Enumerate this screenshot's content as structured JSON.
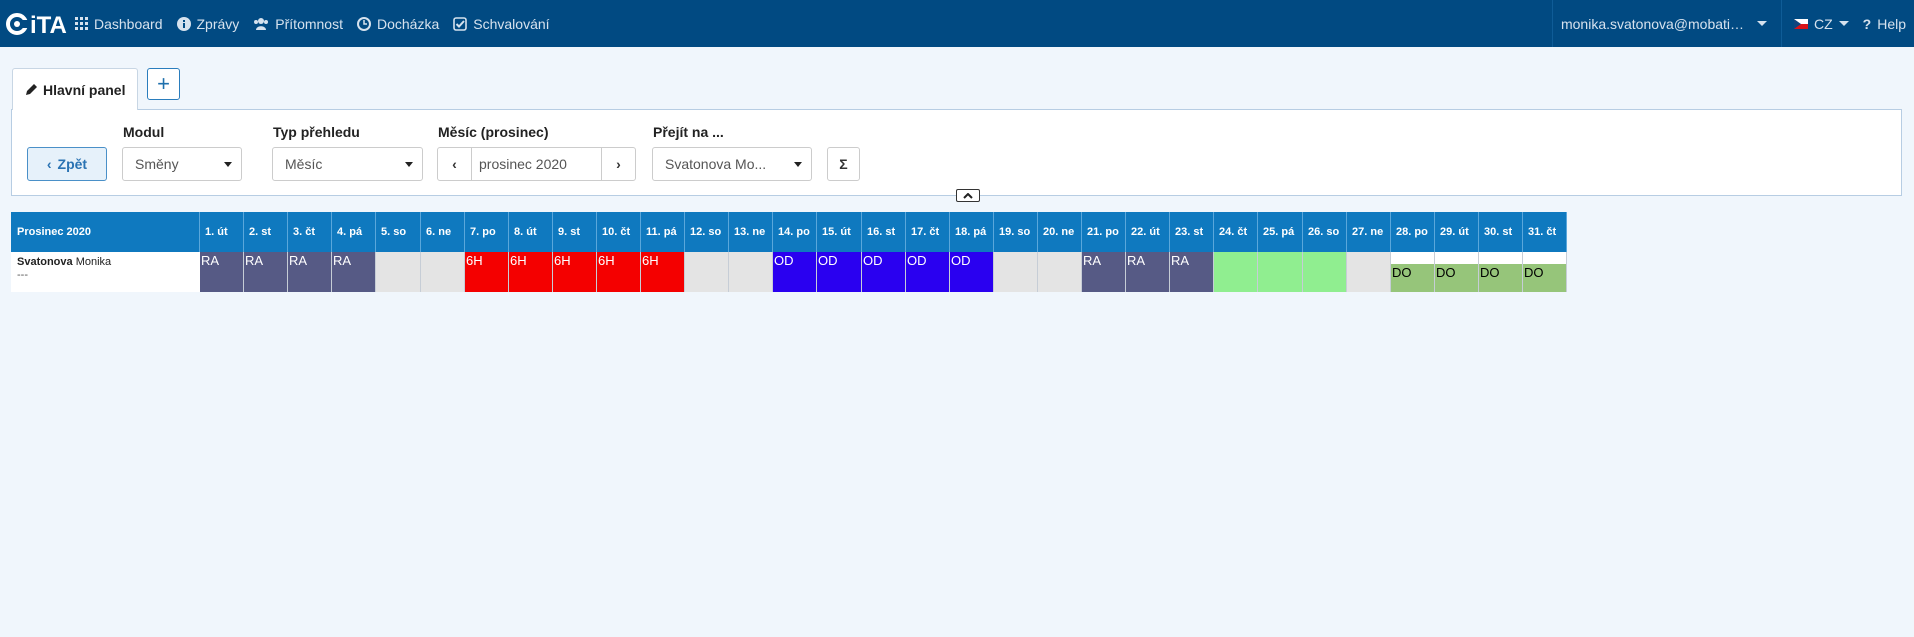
{
  "app": {
    "logo_text": "iTA",
    "nav": [
      {
        "label": "Dashboard",
        "icon": "grid-icon"
      },
      {
        "label": "Zprávy",
        "icon": "info-icon"
      },
      {
        "label": "Přítomnost",
        "icon": "users-icon"
      },
      {
        "label": "Docházka",
        "icon": "clock-icon"
      },
      {
        "label": "Schvalování",
        "icon": "check-square-icon"
      }
    ],
    "user": "monika.svatonova@mobatime...",
    "language": "CZ",
    "help": "Help"
  },
  "tabs": {
    "active_label": "Hlavní panel",
    "add_label": "+"
  },
  "filters": {
    "back_label": "Zpět",
    "module_label": "Modul",
    "module_value": "Směny",
    "view_label": "Typ přehledu",
    "view_value": "Měsíc",
    "month_label": "Měsíc (prosinec)",
    "month_value": "prosinec 2020",
    "goto_label": "Přejít na ...",
    "goto_value": "Svatonova Mo...",
    "sum_label": "Σ"
  },
  "grid": {
    "title": "Prosinec 2020",
    "days": [
      "1. út",
      "2. st",
      "3. čt",
      "4. pá",
      "5. so",
      "6. ne",
      "7. po",
      "8. út",
      "9. st",
      "10. čt",
      "11. pá",
      "12. so",
      "13. ne",
      "14. po",
      "15. út",
      "16. st",
      "17. čt",
      "18. pá",
      "19. so",
      "20. ne",
      "21. po",
      "22. út",
      "23. st",
      "24. čt",
      "25. pá",
      "26. so",
      "27. ne",
      "28. po",
      "29. út",
      "30. st",
      "31. čt"
    ],
    "employee": {
      "surname": "Svatonova",
      "firstname": "Monika",
      "sub": "---"
    },
    "cells": [
      {
        "code": "RA",
        "color": "#565a85",
        "text_color": "#ffffff"
      },
      {
        "code": "RA",
        "color": "#565a85",
        "text_color": "#ffffff"
      },
      {
        "code": "RA",
        "color": "#565a85",
        "text_color": "#ffffff"
      },
      {
        "code": "RA",
        "color": "#565a85",
        "text_color": "#ffffff"
      },
      {
        "code": "",
        "color": "#e4e4e4",
        "text_color": "#000000"
      },
      {
        "code": "",
        "color": "#e4e4e4",
        "text_color": "#000000"
      },
      {
        "code": "6H",
        "color": "#f40000",
        "text_color": "#ffffff"
      },
      {
        "code": "6H",
        "color": "#f40000",
        "text_color": "#ffffff"
      },
      {
        "code": "6H",
        "color": "#f40000",
        "text_color": "#ffffff"
      },
      {
        "code": "6H",
        "color": "#f40000",
        "text_color": "#ffffff"
      },
      {
        "code": "6H",
        "color": "#f40000",
        "text_color": "#ffffff"
      },
      {
        "code": "",
        "color": "#e4e4e4",
        "text_color": "#000000"
      },
      {
        "code": "",
        "color": "#e4e4e4",
        "text_color": "#000000"
      },
      {
        "code": "OD",
        "color": "#2a00f0",
        "text_color": "#ffffff"
      },
      {
        "code": "OD",
        "color": "#2a00f0",
        "text_color": "#ffffff"
      },
      {
        "code": "OD",
        "color": "#2a00f0",
        "text_color": "#ffffff"
      },
      {
        "code": "OD",
        "color": "#2a00f0",
        "text_color": "#ffffff"
      },
      {
        "code": "OD",
        "color": "#2a00f0",
        "text_color": "#ffffff"
      },
      {
        "code": "",
        "color": "#e4e4e4",
        "text_color": "#000000"
      },
      {
        "code": "",
        "color": "#e4e4e4",
        "text_color": "#000000"
      },
      {
        "code": "RA",
        "color": "#565a85",
        "text_color": "#ffffff"
      },
      {
        "code": "RA",
        "color": "#565a85",
        "text_color": "#ffffff"
      },
      {
        "code": "RA",
        "color": "#565a85",
        "text_color": "#ffffff"
      },
      {
        "code": "",
        "color": "#90ee90",
        "text_color": "#000000"
      },
      {
        "code": "",
        "color": "#90ee90",
        "text_color": "#000000"
      },
      {
        "code": "",
        "color": "#90ee90",
        "text_color": "#000000"
      },
      {
        "code": "",
        "color": "#e4e4e4",
        "text_color": "#000000"
      },
      {
        "code": "DO",
        "color": "#96c57a",
        "text_color": "#000000"
      },
      {
        "code": "DO",
        "color": "#96c57a",
        "text_color": "#000000"
      },
      {
        "code": "DO",
        "color": "#96c57a",
        "text_color": "#000000"
      },
      {
        "code": "DO",
        "color": "#96c57a",
        "text_color": "#000000"
      }
    ]
  }
}
